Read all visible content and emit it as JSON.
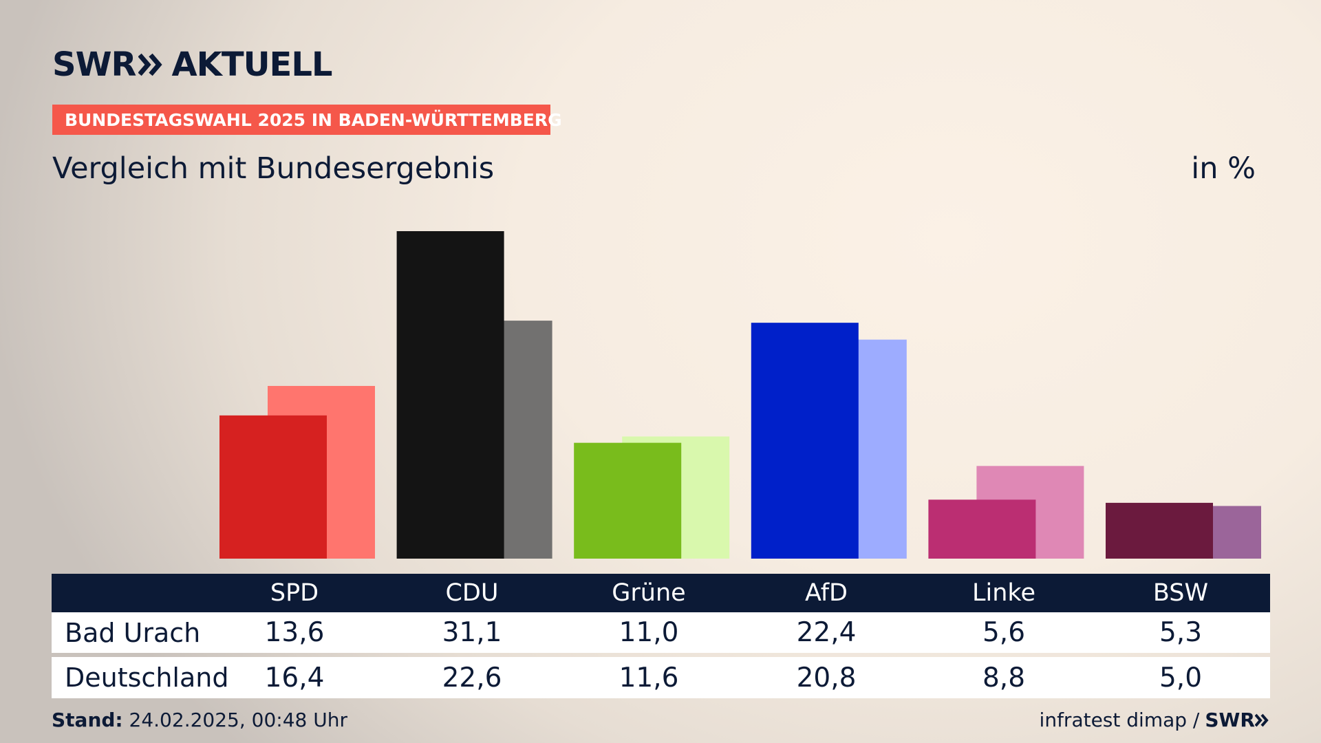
{
  "header": {
    "logo_text_left": "SWR",
    "logo_text_right": "AKTUELL",
    "banner": "BUNDESTAGSWAHL 2025 IN BADEN-WÜRTTEMBERG",
    "subtitle": "Vergleich mit Bundesergebnis",
    "unit": "in %"
  },
  "chart_data": {
    "type": "bar",
    "categories": [
      "SPD",
      "CDU",
      "Grüne",
      "AfD",
      "Linke",
      "BSW"
    ],
    "series": [
      {
        "name": "Bad Urach",
        "values": [
          13.6,
          31.1,
          11.0,
          22.4,
          5.6,
          5.3
        ],
        "colors": [
          "#d62120",
          "#141414",
          "#79bc1c",
          "#0020c9",
          "#bb2e72",
          "#6b1a3e"
        ]
      },
      {
        "name": "Deutschland",
        "values": [
          16.4,
          22.6,
          11.6,
          20.8,
          8.8,
          5.0
        ],
        "colors": [
          "#ff756e",
          "#727170",
          "#d9f8ad",
          "#9dacff",
          "#df88b5",
          "#9b659a"
        ]
      }
    ],
    "ylim": [
      0,
      33
    ]
  },
  "table": {
    "headers": [
      "SPD",
      "CDU",
      "Grüne",
      "AfD",
      "Linke",
      "BSW"
    ],
    "rows": [
      {
        "label": "Bad Urach",
        "values": [
          "13,6",
          "31,1",
          "11,0",
          "22,4",
          "5,6",
          "5,3"
        ]
      },
      {
        "label": "Deutschland",
        "values": [
          "16,4",
          "22,6",
          "11,6",
          "20,8",
          "8,8",
          "5,0"
        ]
      }
    ]
  },
  "footer": {
    "stand_label": "Stand:",
    "stand_value": "24.02.2025, 00:48 Uhr",
    "source": "infratest dimap /",
    "logo": "SWR"
  }
}
